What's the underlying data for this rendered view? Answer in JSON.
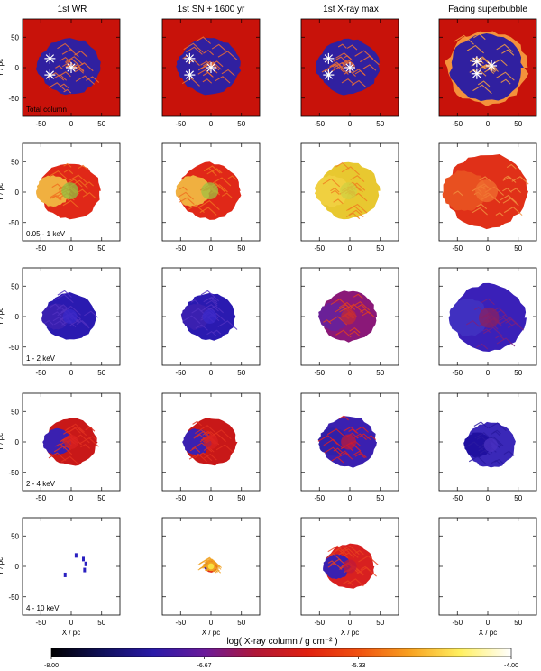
{
  "chart_data": {
    "type": "heatmap",
    "columns": [
      "1st WR",
      "1st SN + 1600 yr",
      "1st X-ray max",
      "Facing superbubble"
    ],
    "rows": [
      "Total column",
      "0.05 - 1 keV",
      "1 - 2 keV",
      "2 - 4 keV",
      "4 - 10 keV"
    ],
    "xlabel": "X / pc",
    "ylabel": "Y / pc",
    "xticks": [
      -50,
      0,
      50
    ],
    "yticks": [
      50,
      0,
      -50
    ],
    "xlim": [
      -80,
      80
    ],
    "ylim": [
      -80,
      80
    ],
    "colorbar": {
      "label": "log( X-ray column / g cm⁻² )",
      "ticks": [
        "-8.00",
        "-6.67",
        "-5.33",
        "-4.00"
      ],
      "range": [
        -8.0,
        -4.0
      ],
      "colors": [
        "#000000",
        "#10105a",
        "#2a1aa8",
        "#6a1a9a",
        "#b01838",
        "#e02010",
        "#f05010",
        "#f8a020",
        "#fff060",
        "#ffffff"
      ]
    },
    "panels": [
      [
        {
          "empty": false,
          "bg": "#c8120a",
          "shape": "square",
          "fill": "#3020a0",
          "cracks": "#f07030",
          "stars": [
            [
              -35,
              15
            ],
            [
              -35,
              -12
            ],
            [
              0,
              0
            ]
          ],
          "cx": -2,
          "cy": 2,
          "r": 50
        },
        {
          "empty": false,
          "bg": "#c8120a",
          "shape": "square",
          "fill": "#3020a0",
          "cracks": "#f07030",
          "stars": [
            [
              -35,
              15
            ],
            [
              -35,
              -12
            ],
            [
              0,
              0
            ]
          ],
          "cx": -2,
          "cy": 2,
          "r": 50
        },
        {
          "empty": false,
          "bg": "#c8120a",
          "shape": "square",
          "fill": "#3020a0",
          "cracks": "#f07030",
          "stars": [
            [
              -35,
              15
            ],
            [
              -35,
              -12
            ],
            [
              0,
              0
            ]
          ],
          "cx": -2,
          "cy": 2,
          "r": 50
        },
        {
          "empty": false,
          "bg": "#c8120a",
          "shape": "bubble",
          "fill": "#3020a0",
          "cracks": "#f8a040",
          "stars": [
            [
              -18,
              10
            ],
            [
              -18,
              -10
            ],
            [
              6,
              3
            ]
          ],
          "cx": -2,
          "cy": 0,
          "r": 66
        }
      ],
      [
        {
          "empty": false,
          "fill": "#e02818",
          "cracks": "#f07020",
          "cap": "#f0b040",
          "spot": "#90c040",
          "cx": -2,
          "cy": 2,
          "r": 50
        },
        {
          "empty": false,
          "fill": "#e02818",
          "cracks": "#f07020",
          "cap": "#f0b040",
          "spot": "#a0c040",
          "cx": -2,
          "cy": 2,
          "r": 50
        },
        {
          "empty": false,
          "fill": "#e8c830",
          "cracks": "#f08020",
          "cap": "#f0d040",
          "spot": "#d0d040",
          "cx": -2,
          "cy": 2,
          "r": 50
        },
        {
          "empty": false,
          "fill": "#e03018",
          "cracks": "#f09040",
          "cap": "#e85020",
          "spot": "#f07030",
          "cx": -2,
          "cy": 2,
          "r": 66
        }
      ],
      [
        {
          "empty": false,
          "fill": "#2a1ab0",
          "cracks": "#5030c0",
          "cap": "#3a20b0",
          "spot": "#3a28c8",
          "cx": -2,
          "cy": 0,
          "r": 42
        },
        {
          "empty": false,
          "fill": "#2a1ab0",
          "cracks": "#5030c0",
          "cap": "#3a20b0",
          "spot": "#3a28c8",
          "cx": -2,
          "cy": 0,
          "r": 42
        },
        {
          "empty": false,
          "fill": "#8a1878",
          "cracks": "#e04020",
          "cap": "#6a2098",
          "spot": "#c02838",
          "cx": -2,
          "cy": 0,
          "r": 45
        },
        {
          "empty": false,
          "fill": "#3a20b8",
          "cracks": "#7a2080",
          "cap": "#4030c0",
          "spot": "#8a2060",
          "cx": 2,
          "cy": -2,
          "r": 60
        }
      ],
      [
        {
          "empty": false,
          "fill": "#c81818",
          "cracks": "#e03020",
          "cap": "#3a20b0",
          "spot": "#d82020",
          "cx": 0,
          "cy": 0,
          "r": 42
        },
        {
          "empty": false,
          "fill": "#c81818",
          "cracks": "#e03020",
          "cap": "#3a20b0",
          "spot": "#d82020",
          "cx": 0,
          "cy": 0,
          "r": 42
        },
        {
          "empty": false,
          "fill": "#3a20b0",
          "cracks": "#e02020",
          "cap": "#3020a8",
          "spot": "#c01838",
          "cx": -2,
          "cy": 0,
          "r": 45
        },
        {
          "empty": false,
          "fill": "#3a28b8",
          "cracks": "#2a1aa0",
          "cap": "#2010a0",
          "spot": "#4a30c0",
          "cx": 5,
          "cy": -5,
          "r": 40
        }
      ],
      [
        {
          "empty": false,
          "fill": "#2a20c0",
          "cracks": "#2a20c0",
          "cap": "#2a20c0",
          "spot": "#2a20c0",
          "cx": 15,
          "cy": 0,
          "r": 0
        },
        {
          "empty": false,
          "fill": "#e02818",
          "cracks": "#f0a020",
          "cap": "#3020a8",
          "spot": "#f08020",
          "cx": 0,
          "cy": 0,
          "r": 11
        },
        {
          "empty": false,
          "fill": "#d82020",
          "cracks": "#e84020",
          "cap": "#3a20b0",
          "spot": "#c01838",
          "cx": 0,
          "cy": 0,
          "r": 40
        },
        {
          "empty": true
        }
      ]
    ]
  }
}
